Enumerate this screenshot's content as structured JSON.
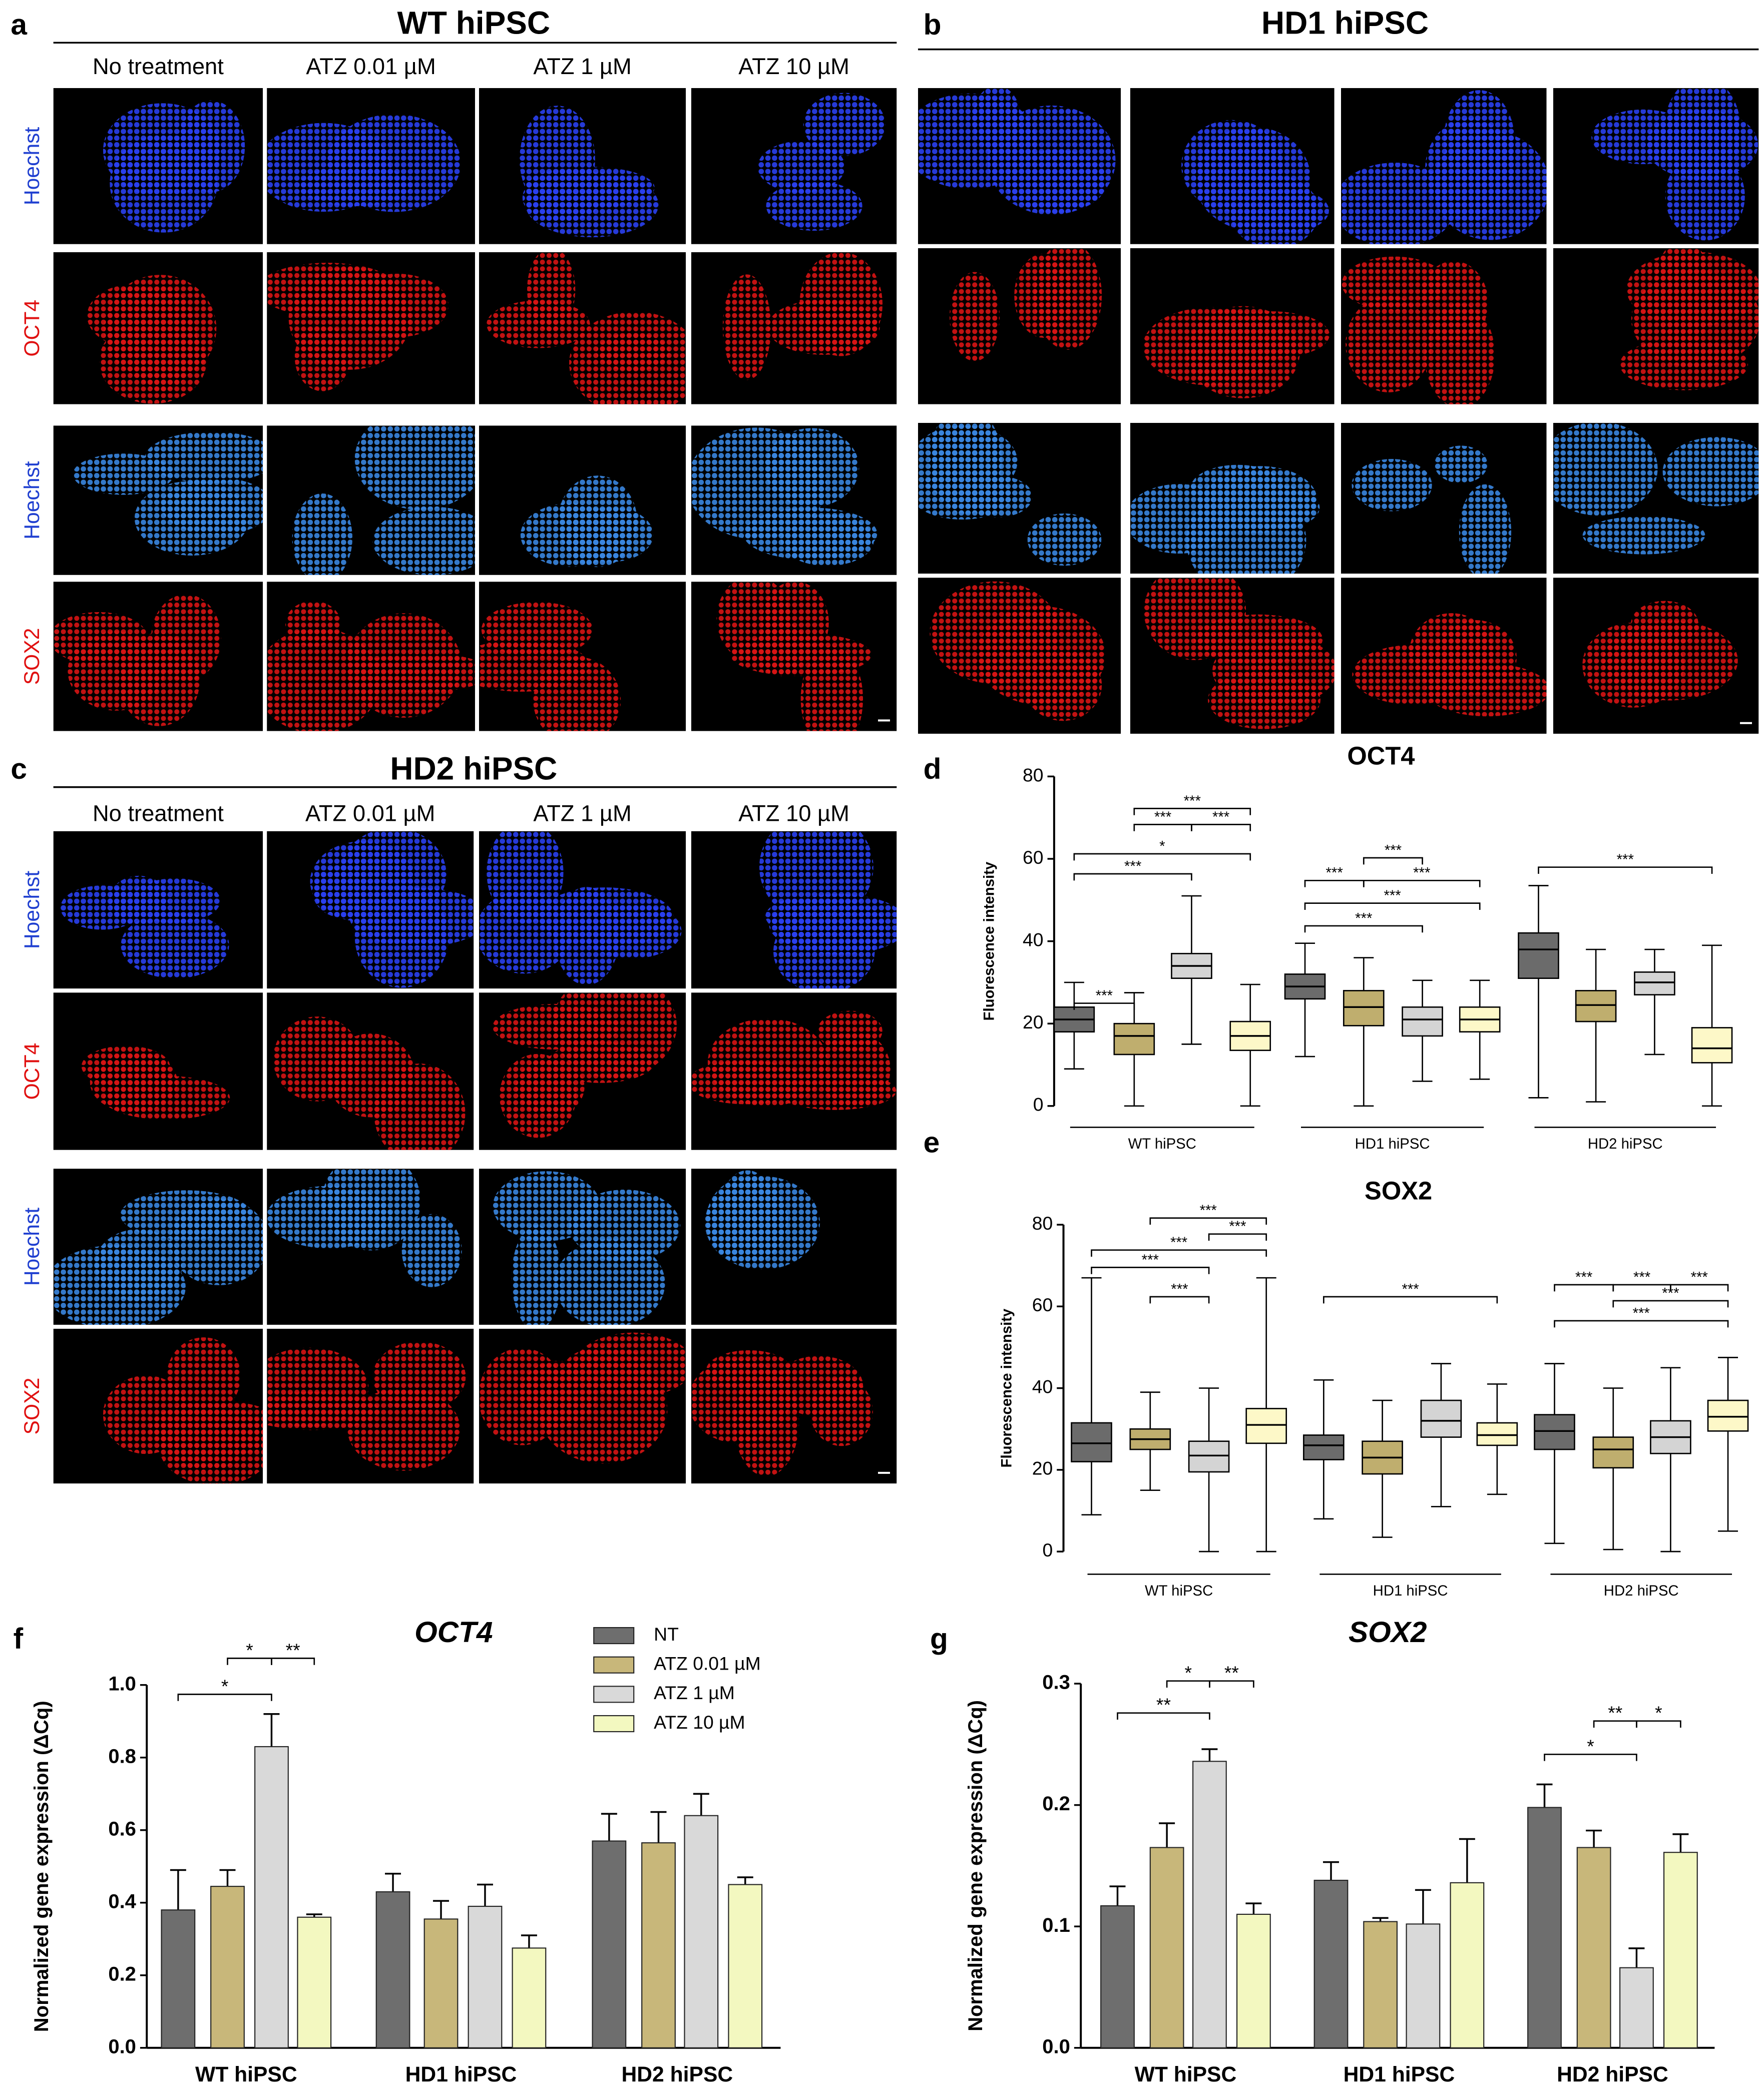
{
  "image_panels": [
    {
      "letter": "a",
      "title": "WT hiPSC",
      "columns": [
        "No treatment",
        "ATZ 0.01 µM",
        "ATZ 1 µM",
        "ATZ 10 µM"
      ],
      "rows": [
        "Hoechst",
        "OCT4",
        "Hoechst",
        "SOX2"
      ]
    },
    {
      "letter": "b",
      "title": "HD1 hiPSC"
    },
    {
      "letter": "c",
      "title": "HD2 hiPSC",
      "columns": [
        "No treatment",
        "ATZ 0.01 µM",
        "ATZ 1 µM",
        "ATZ 10 µM"
      ],
      "rows": [
        "Hoechst",
        "OCT4",
        "Hoechst",
        "SOX2"
      ]
    }
  ],
  "chart_data": [
    {
      "type": "box",
      "letter": "d",
      "title": "OCT4",
      "y_label": "Fluorescence intensity",
      "categories": [
        "WT hiPSC",
        "HD1 hiPSC",
        "HD2 hiPSC"
      ],
      "ylim": [
        0,
        80
      ],
      "yticks": [
        0,
        20,
        40,
        60,
        80
      ],
      "series": [
        {
          "color": "#6b6b6b",
          "min": [
            9,
            12,
            2
          ],
          "q1": [
            18,
            26,
            31
          ],
          "median": [
            21,
            29,
            38
          ],
          "q3": [
            24,
            32,
            42
          ],
          "max": [
            30,
            39.5,
            53.5
          ]
        },
        {
          "color": "#bfae6e",
          "min": [
            0,
            0,
            1
          ],
          "q1": [
            12.5,
            19.5,
            20.5
          ],
          "median": [
            17,
            24,
            24.5
          ],
          "q3": [
            20,
            28,
            28
          ],
          "max": [
            27.5,
            36,
            38
          ]
        },
        {
          "color": "#d4d4d4",
          "min": [
            15,
            6,
            12.5
          ],
          "q1": [
            31,
            17,
            27
          ],
          "median": [
            34,
            21,
            30
          ],
          "q3": [
            37,
            24,
            32.5
          ],
          "max": [
            51,
            30.5,
            38
          ]
        },
        {
          "color": "#fdf8c8",
          "min": [
            0,
            6.5,
            0
          ],
          "q1": [
            13.5,
            18,
            10.5
          ],
          "median": [
            17,
            21,
            14
          ],
          "q3": [
            20.5,
            24,
            19
          ],
          "max": [
            29.5,
            30.5,
            39
          ]
        }
      ],
      "annotations": [
        "***",
        "***",
        "***",
        "*",
        "***",
        "***",
        "***",
        "***",
        "***",
        "***",
        "***",
        "***"
      ]
    },
    {
      "type": "box",
      "letter": "e",
      "title": "SOX2",
      "y_label": "Fluorescence intensity",
      "categories": [
        "WT hiPSC",
        "HD1 hiPSC",
        "HD2 hiPSC"
      ],
      "ylim": [
        0,
        80
      ],
      "yticks": [
        0,
        20,
        40,
        60,
        80
      ],
      "series": [
        {
          "color": "#6b6b6b",
          "min": [
            9,
            8,
            2
          ],
          "q1": [
            22,
            22.5,
            25
          ],
          "median": [
            26.5,
            26,
            29.5
          ],
          "q3": [
            31.5,
            28.5,
            33.5
          ],
          "max": [
            67,
            42,
            46
          ]
        },
        {
          "color": "#bfae6e",
          "min": [
            15,
            3.5,
            0.5
          ],
          "q1": [
            25,
            19,
            20.5
          ],
          "median": [
            27.5,
            23,
            25
          ],
          "q3": [
            30,
            27,
            28
          ],
          "max": [
            39,
            37,
            40
          ]
        },
        {
          "color": "#d4d4d4",
          "min": [
            0,
            11,
            0
          ],
          "q1": [
            19.5,
            28,
            24
          ],
          "median": [
            23.5,
            32,
            28
          ],
          "q3": [
            27,
            37,
            32
          ],
          "max": [
            40,
            46,
            45
          ]
        },
        {
          "color": "#fdf8c8",
          "min": [
            0,
            14,
            5
          ],
          "q1": [
            26.5,
            26,
            29.5
          ],
          "median": [
            31,
            28.5,
            33
          ],
          "q3": [
            35,
            31.5,
            37
          ],
          "max": [
            67,
            41,
            47.5
          ]
        }
      ],
      "annotations": [
        "***",
        "***",
        "***",
        "***",
        "***",
        "***",
        "***",
        "***",
        "***",
        "***",
        "***"
      ]
    },
    {
      "type": "bar",
      "letter": "f",
      "title": "OCT4",
      "y_label": "Normalized gene expression (ΔCq)",
      "categories": [
        "WT hiPSC",
        "HD1 hiPSC",
        "HD2 hiPSC"
      ],
      "ylim": [
        0,
        1
      ],
      "yticks": [
        {
          "value": 0,
          "label": "0.0"
        },
        0.2,
        0.4,
        0.6,
        0.8,
        {
          "value": 1,
          "label": "1.0"
        }
      ],
      "legend": "top",
      "series": [
        {
          "name": "NT",
          "color": "#6e6e6e",
          "values": [
            0.38,
            0.43,
            0.57
          ],
          "errors": [
            0.11,
            0.05,
            0.075
          ]
        },
        {
          "name": "ATZ 0.01 µM",
          "color": "#c8b77a",
          "values": [
            0.445,
            0.355,
            0.565
          ],
          "errors": [
            0.045,
            0.05,
            0.085
          ]
        },
        {
          "name": "ATZ 1 µM",
          "color": "#d9d9d9",
          "values": [
            0.83,
            0.39,
            0.64
          ],
          "errors": [
            0.09,
            0.06,
            0.06
          ]
        },
        {
          "name": "ATZ 10 µM",
          "color": "#f3f8c0",
          "values": [
            0.36,
            0.275,
            0.45
          ],
          "errors": [
            0.008,
            0.035,
            0.02
          ]
        }
      ],
      "annotations": [
        "*",
        "*",
        "**"
      ]
    },
    {
      "type": "bar",
      "letter": "g",
      "title": "SOX2",
      "y_label": "Normalized gene expression (ΔCq)",
      "categories": [
        "WT hiPSC",
        "HD1 hiPSC",
        "HD2 hiPSC"
      ],
      "ylim": [
        0,
        0.3
      ],
      "yticks": [
        {
          "value": 0,
          "label": "0.0"
        },
        0.1,
        0.2,
        0.3
      ],
      "series": [
        {
          "color": "#6e6e6e",
          "values": [
            0.117,
            0.138,
            0.198
          ],
          "errors": [
            0.016,
            0.015,
            0.019
          ]
        },
        {
          "color": "#c8b77a",
          "values": [
            0.165,
            0.104,
            0.165
          ],
          "errors": [
            0.02,
            0.003,
            0.014
          ]
        },
        {
          "color": "#d9d9d9",
          "values": [
            0.236,
            0.102,
            0.066
          ],
          "errors": [
            0.01,
            0.028,
            0.016
          ]
        },
        {
          "color": "#f3f8c0",
          "values": [
            0.11,
            0.136,
            0.161
          ],
          "errors": [
            0.009,
            0.036,
            0.015
          ]
        }
      ],
      "annotations": [
        "**",
        "*",
        "**",
        "*",
        "**",
        "*"
      ]
    }
  ]
}
